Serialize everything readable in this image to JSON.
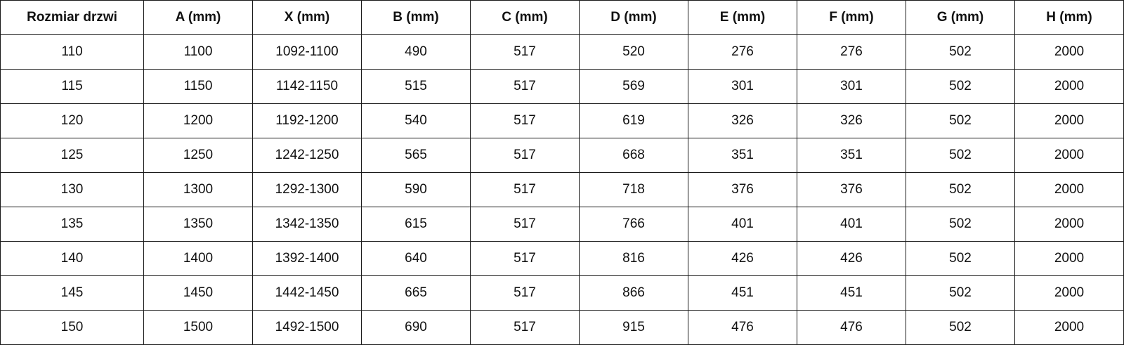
{
  "headers": [
    "Rozmiar drzwi",
    "A (mm)",
    "X (mm)",
    "B (mm)",
    "C (mm)",
    "D (mm)",
    "E (mm)",
    "F (mm)",
    "G (mm)",
    "H (mm)"
  ],
  "rows": [
    [
      "110",
      "1100",
      "1092-1100",
      "490",
      "517",
      "520",
      "276",
      "276",
      "502",
      "2000"
    ],
    [
      "115",
      "1150",
      "1142-1150",
      "515",
      "517",
      "569",
      "301",
      "301",
      "502",
      "2000"
    ],
    [
      "120",
      "1200",
      "1192-1200",
      "540",
      "517",
      "619",
      "326",
      "326",
      "502",
      "2000"
    ],
    [
      "125",
      "1250",
      "1242-1250",
      "565",
      "517",
      "668",
      "351",
      "351",
      "502",
      "2000"
    ],
    [
      "130",
      "1300",
      "1292-1300",
      "590",
      "517",
      "718",
      "376",
      "376",
      "502",
      "2000"
    ],
    [
      "135",
      "1350",
      "1342-1350",
      "615",
      "517",
      "766",
      "401",
      "401",
      "502",
      "2000"
    ],
    [
      "140",
      "1400",
      "1392-1400",
      "640",
      "517",
      "816",
      "426",
      "426",
      "502",
      "2000"
    ],
    [
      "145",
      "1450",
      "1442-1450",
      "665",
      "517",
      "866",
      "451",
      "451",
      "502",
      "2000"
    ],
    [
      "150",
      "1500",
      "1492-1500",
      "690",
      "517",
      "915",
      "476",
      "476",
      "502",
      "2000"
    ]
  ]
}
